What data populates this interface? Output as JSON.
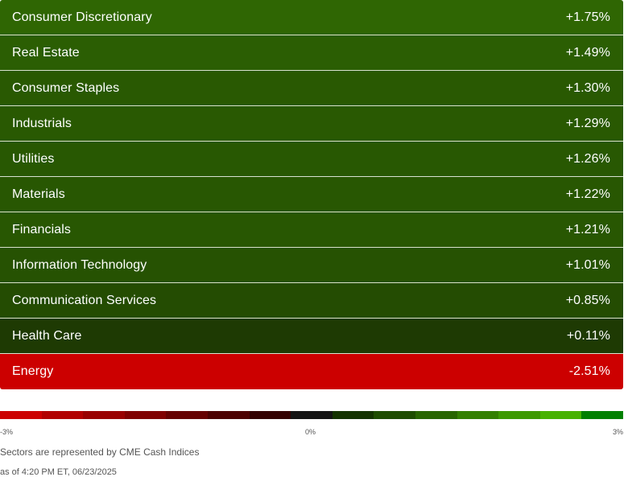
{
  "sectors": [
    {
      "name": "Consumer Discretionary",
      "change": "+1.75%",
      "color": "#2f6603"
    },
    {
      "name": "Real Estate",
      "change": "+1.49%",
      "color": "#2b5e03"
    },
    {
      "name": "Consumer Staples",
      "change": "+1.30%",
      "color": "#295902"
    },
    {
      "name": "Industrials",
      "change": "+1.29%",
      "color": "#295902"
    },
    {
      "name": "Utilities",
      "change": "+1.26%",
      "color": "#285802"
    },
    {
      "name": "Materials",
      "change": "+1.22%",
      "color": "#285702"
    },
    {
      "name": "Financials",
      "change": "+1.21%",
      "color": "#285702"
    },
    {
      "name": "Information Technology",
      "change": "+1.01%",
      "color": "#265202"
    },
    {
      "name": "Communication Services",
      "change": "+0.85%",
      "color": "#244c02"
    },
    {
      "name": "Health Care",
      "change": "+0.11%",
      "color": "#1e3a03"
    },
    {
      "name": "Energy",
      "change": "-2.51%",
      "color": "#cc0000"
    }
  ],
  "scale": {
    "min_label": "-3%",
    "mid_label": "0%",
    "max_label": "3%",
    "colors": [
      "#cc0000",
      "#b20000",
      "#990000",
      "#800000",
      "#660000",
      "#4d0000",
      "#330000",
      "#141414",
      "#143300",
      "#1e4d00",
      "#286600",
      "#338000",
      "#3d9900",
      "#47b200",
      "#008000"
    ]
  },
  "note": "Sectors are represented by CME Cash Indices",
  "timestamp": "as of 4:20 PM ET, 06/23/2025"
}
